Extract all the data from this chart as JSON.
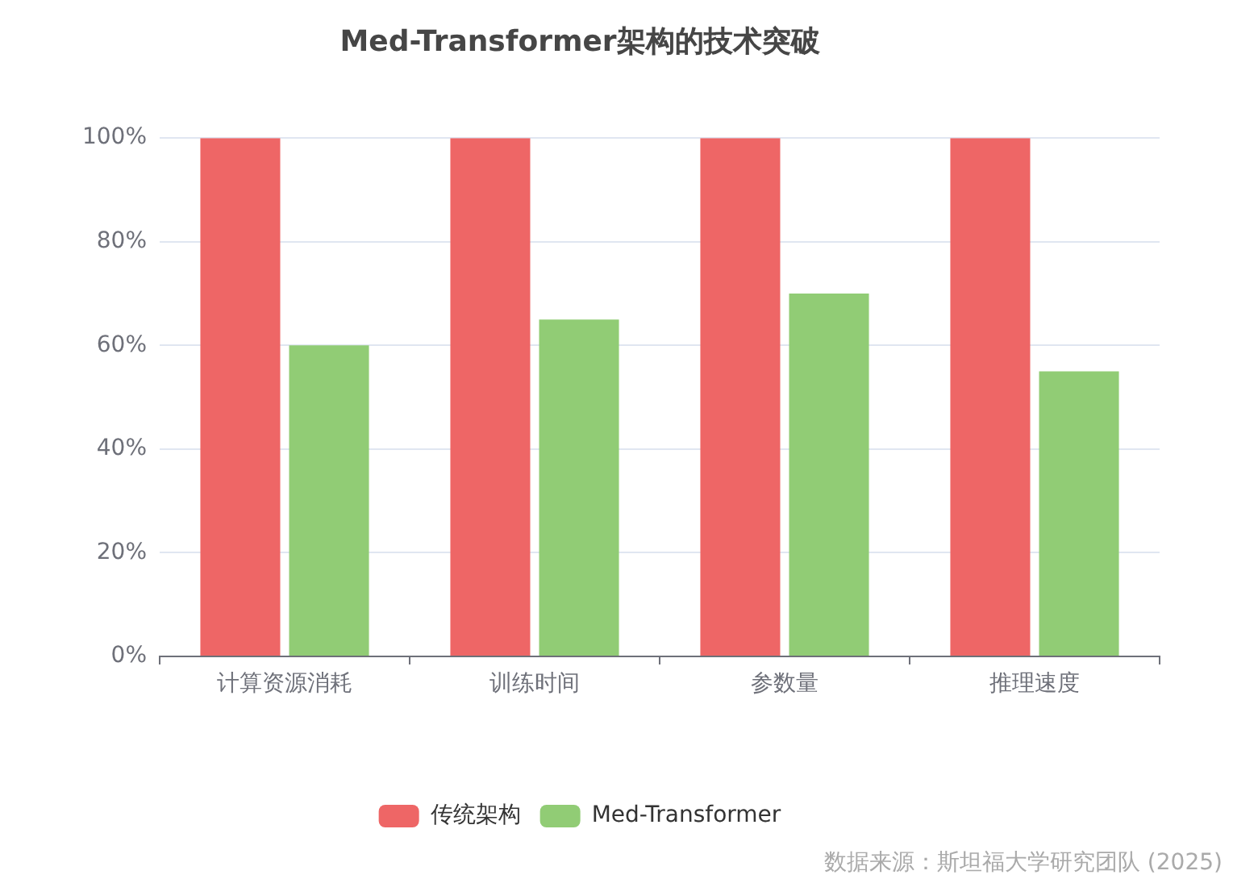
{
  "chart_data": {
    "type": "bar",
    "title": "Med-Transformer架构的技术突破",
    "categories": [
      "计算资源消耗",
      "训练时间",
      "参数量",
      "推理速度"
    ],
    "series": [
      {
        "name": "传统架构",
        "color": "#ee6666",
        "values": [
          100,
          100,
          100,
          100
        ]
      },
      {
        "name": "Med-Transformer",
        "color": "#91cc75",
        "values": [
          60,
          65,
          70,
          55
        ]
      }
    ],
    "ylim": [
      0,
      100
    ],
    "yticks": [
      {
        "value": 0,
        "label": "0%"
      },
      {
        "value": 20,
        "label": "20%"
      },
      {
        "value": 40,
        "label": "40%"
      },
      {
        "value": 60,
        "label": "60%"
      },
      {
        "value": 80,
        "label": "80%"
      },
      {
        "value": 100,
        "label": "100%"
      }
    ],
    "grid": "y",
    "legend": "bottom",
    "annotations": [
      "数据来源：斯坦福大学研究团队 (2025)"
    ]
  }
}
